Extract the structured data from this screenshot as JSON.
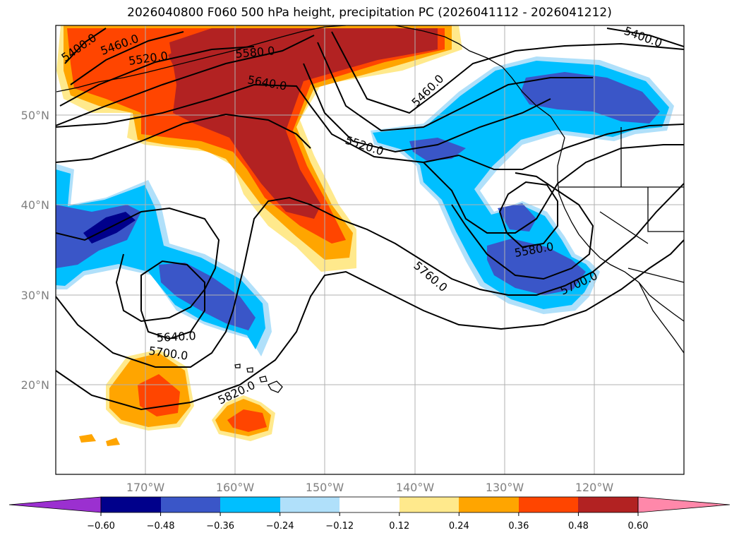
{
  "title": "2026040800 F060 500 hPa height, precipitation PC (2026041112 - 2026041212)",
  "map": {
    "lat_labels": [
      "50°N",
      "40°N",
      "30°N",
      "20°N"
    ],
    "lon_labels": [
      "170°W",
      "160°W",
      "150°W",
      "140°W",
      "130°W",
      "120°W"
    ],
    "contour_labels": [
      "5400.0",
      "5460.0",
      "5520.0",
      "5580.0",
      "5640.0",
      "5400.0",
      "5460.0",
      "5520.0",
      "5580.0",
      "5700.0",
      "5760.0",
      "5640.0",
      "5700.0",
      "5820.0"
    ],
    "grid": true,
    "coastlines": true
  },
  "colors": {
    "neg_extreme": "#9b30d0",
    "neg_060": "#00008b",
    "neg_048": "#3a56c8",
    "neg_036": "#00bfff",
    "neg_024": "#b0e0fa",
    "neutral": "#ffffff",
    "pos_012": "#ffe98c",
    "pos_024": "#ffa500",
    "pos_036": "#ff4500",
    "pos_048": "#b22222",
    "pos_extreme": "#ff88aa"
  },
  "colorbar": {
    "ticks": [
      "−0.60",
      "−0.48",
      "−0.36",
      "−0.24",
      "−0.12",
      "0.12",
      "0.24",
      "0.36",
      "0.48",
      "0.60"
    ],
    "bounds": [
      -0.6,
      -0.48,
      -0.36,
      -0.24,
      -0.12,
      0.12,
      0.24,
      0.36,
      0.48,
      0.6
    ],
    "extend": "both"
  }
}
